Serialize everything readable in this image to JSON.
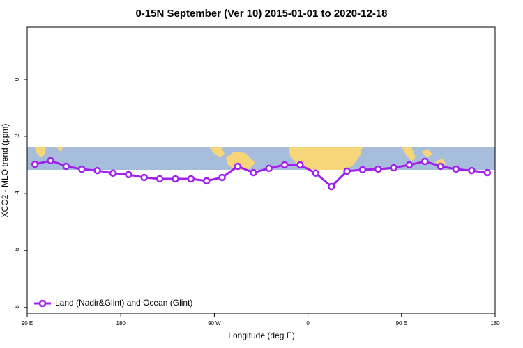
{
  "chart_data": {
    "type": "line",
    "title": "0-15N September (Ver 10)   2015-01-01 to 2020-12-18",
    "x_label": "Longitude (deg E)",
    "y_label": "XCO2 - MLO trend (ppm)",
    "xlim": [
      90,
      540
    ],
    "ylim": [
      -8.2,
      1.83
    ],
    "xticks": [
      {
        "value": 90,
        "label": "90 E"
      },
      {
        "value": 180,
        "label": "180"
      },
      {
        "value": 270,
        "label": "90 W"
      },
      {
        "value": 360,
        "label": "0"
      },
      {
        "value": 450,
        "label": "90 E"
      },
      {
        "value": 540,
        "label": "180"
      }
    ],
    "yticks": [
      0,
      -2,
      -4,
      -6,
      -8
    ],
    "legend": "bottom-left",
    "x": [
      97.5,
      112.5,
      127.5,
      142.5,
      157.5,
      172.5,
      187.5,
      202.5,
      217.5,
      232.5,
      247.5,
      262.5,
      277.5,
      292.5,
      307.5,
      322.5,
      337.5,
      352.5,
      367.5,
      382.5,
      397.5,
      412.5,
      427.5,
      442.5,
      457.5,
      472.5,
      487.5,
      502.5,
      517.5,
      532.5
    ],
    "series": [
      {
        "name": "Land (Nadir&Glint) and Ocean (Glint)",
        "color": "#a020f0",
        "values": [
          -2.98,
          -2.85,
          -3.05,
          -3.15,
          -3.2,
          -3.29,
          -3.34,
          -3.44,
          -3.49,
          -3.49,
          -3.49,
          -3.56,
          -3.44,
          -3.05,
          -3.27,
          -3.12,
          -3.0,
          -3.0,
          -3.29,
          -3.76,
          -3.22,
          -3.17,
          -3.15,
          -3.1,
          -3.0,
          -2.88,
          -3.05,
          -3.15,
          -3.2,
          -3.27
        ]
      }
    ]
  }
}
